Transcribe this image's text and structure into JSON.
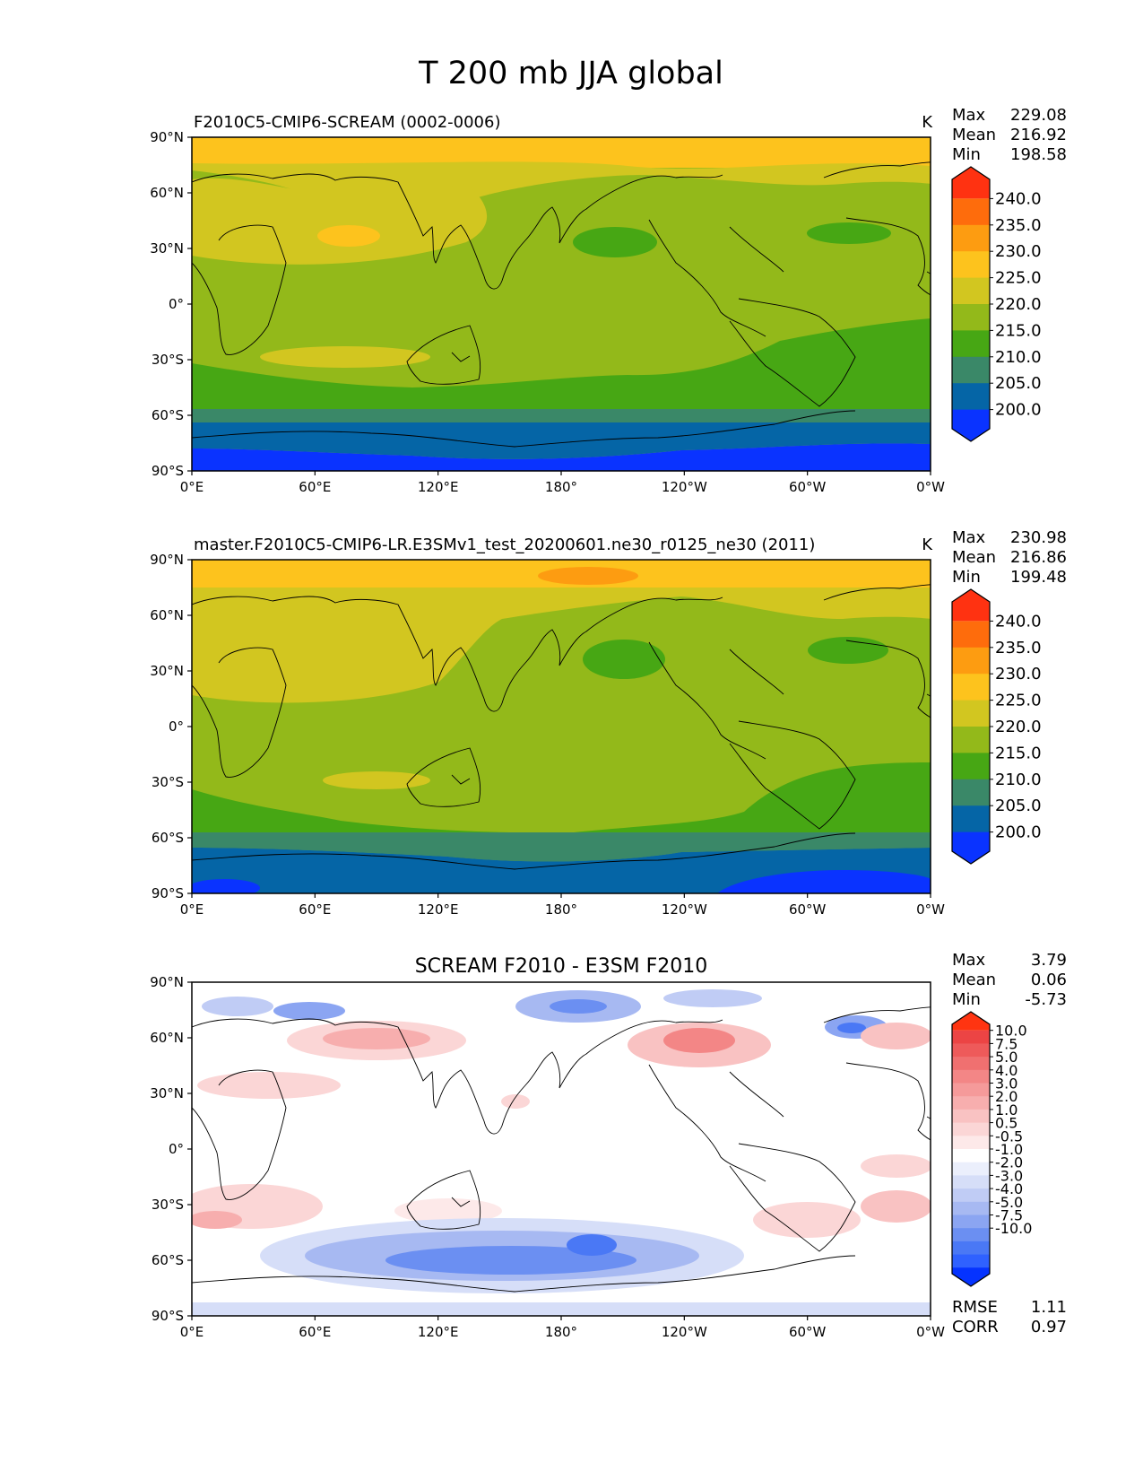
{
  "figure": {
    "title": "T 200 mb JJA global"
  },
  "colors": {
    "absolute_levels": [
      "#0a33ff",
      "#0565a6",
      "#3a8868",
      "#47a714",
      "#93b91a",
      "#d2c620",
      "#fdc31d",
      "#fd9c11",
      "#fe6c0c",
      "#ff3211"
    ],
    "diff_levels": [
      "#0533ff",
      "#2f61ff",
      "#4a78f5",
      "#6b8ff2",
      "#8ba5f2",
      "#a7b9f2",
      "#c0ccf5",
      "#d6def8",
      "#ebeffc",
      "#ffffff",
      "#fde9e9",
      "#fbd6d6",
      "#f9c2c2",
      "#f7aeae",
      "#f59a9a",
      "#f38686",
      "#f07070",
      "#ee5a5a",
      "#ec4444",
      "#ff3411"
    ],
    "coastline": "#000000"
  },
  "chart_data": [
    {
      "type": "heatmap",
      "title_left": "F2010C5-CMIP6-SCREAM (0002-0006)",
      "units": "K",
      "stats": [
        {
          "label": "Max",
          "value": "229.08"
        },
        {
          "label": "Mean",
          "value": "216.92"
        },
        {
          "label": "Min",
          "value": "198.58"
        }
      ],
      "colorbar_levels": [
        "240.0",
        "235.0",
        "230.0",
        "225.0",
        "220.0",
        "215.0",
        "210.0",
        "205.0",
        "200.0"
      ],
      "x_ticks": [
        "0°E",
        "60°E",
        "120°E",
        "180°",
        "120°W",
        "60°W",
        "0°W"
      ],
      "y_ticks": [
        "90°N",
        "60°N",
        "30°N",
        "0°",
        "30°S",
        "60°S",
        "90°S"
      ],
      "lon_range": [
        0,
        360
      ],
      "lat_range": [
        -90,
        90
      ]
    },
    {
      "type": "heatmap",
      "title_left": "master.F2010C5-CMIP6-LR.E3SMv1_test_20200601.ne30_r0125_ne30 (2011)",
      "units": "K",
      "stats": [
        {
          "label": "Max",
          "value": "230.98"
        },
        {
          "label": "Mean",
          "value": "216.86"
        },
        {
          "label": "Min",
          "value": "199.48"
        }
      ],
      "colorbar_levels": [
        "240.0",
        "235.0",
        "230.0",
        "225.0",
        "220.0",
        "215.0",
        "210.0",
        "205.0",
        "200.0"
      ],
      "x_ticks": [
        "0°E",
        "60°E",
        "120°E",
        "180°",
        "120°W",
        "60°W",
        "0°W"
      ],
      "y_ticks": [
        "90°N",
        "60°N",
        "30°N",
        "0°",
        "30°S",
        "60°S",
        "90°S"
      ],
      "lon_range": [
        0,
        360
      ],
      "lat_range": [
        -90,
        90
      ]
    },
    {
      "type": "heatmap",
      "title_center": "SCREAM F2010 - E3SM F2010",
      "stats": [
        {
          "label": "Max",
          "value": "3.79"
        },
        {
          "label": "Mean",
          "value": "0.06"
        },
        {
          "label": "Min",
          "value": "-5.73"
        }
      ],
      "colorbar_levels": [
        "10.0",
        "7.5",
        "5.0",
        "4.0",
        "3.0",
        "2.0",
        "1.0",
        "0.5",
        "-0.5",
        "-1.0",
        "-2.0",
        "-3.0",
        "-4.0",
        "-5.0",
        "-7.5",
        "-10.0"
      ],
      "x_ticks": [
        "0°E",
        "60°E",
        "120°E",
        "180°",
        "120°W",
        "60°W",
        "0°W"
      ],
      "y_ticks": [
        "90°N",
        "60°N",
        "30°N",
        "0°",
        "30°S",
        "60°S",
        "90°S"
      ],
      "lon_range": [
        0,
        360
      ],
      "lat_range": [
        -90,
        90
      ],
      "metrics": [
        {
          "label": "RMSE",
          "value": "1.11"
        },
        {
          "label": "CORR",
          "value": "0.97"
        }
      ]
    }
  ]
}
